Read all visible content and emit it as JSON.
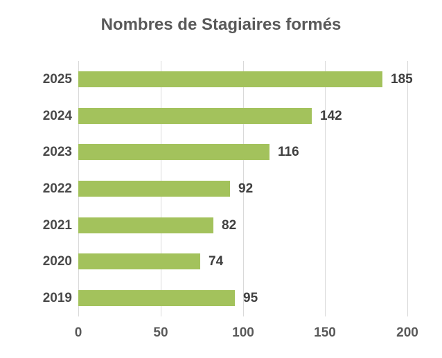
{
  "chart_data": {
    "type": "bar",
    "orientation": "horizontal",
    "title": "Nombres de Stagiaires formés",
    "categories": [
      "2025",
      "2024",
      "2023",
      "2022",
      "2021",
      "2020",
      "2019"
    ],
    "values": [
      185,
      142,
      116,
      92,
      82,
      74,
      95
    ],
    "x_ticks": [
      "0",
      "50",
      "100",
      "150",
      "200"
    ],
    "x_tick_values": [
      0,
      50,
      100,
      150,
      200
    ],
    "xlim": [
      0,
      200
    ],
    "grid": true,
    "legend": false,
    "data_labels": true,
    "colors": {
      "bar": "#a3c25c",
      "gridline": "#d9d9d9",
      "title_text": "#595959",
      "category_text": "#4a4a4a",
      "value_text": "#3f3f3f",
      "tick_text": "#595959"
    }
  }
}
